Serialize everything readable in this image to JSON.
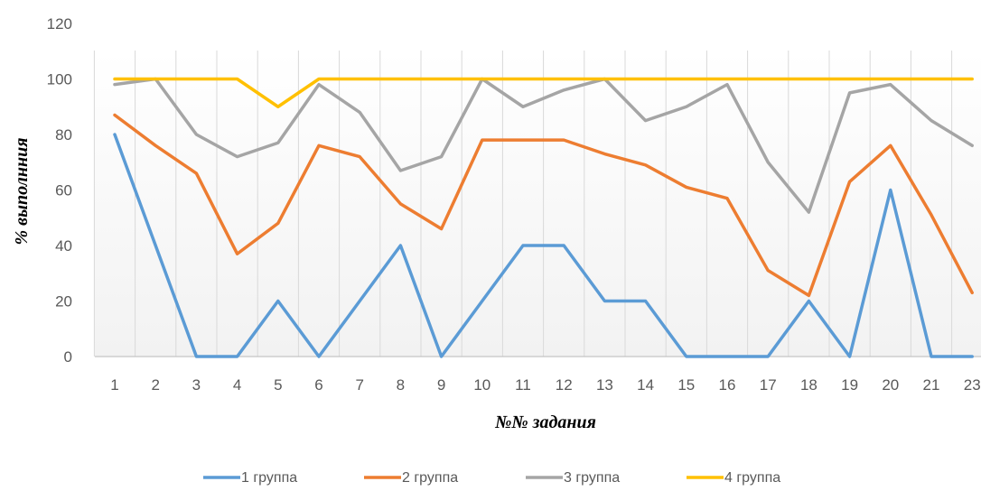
{
  "chart_data": {
    "type": "line",
    "title": "",
    "xlabel": "№№ задания",
    "ylabel": "% выполнния",
    "ylim": [
      0,
      120
    ],
    "yticks": [
      0,
      20,
      40,
      60,
      80,
      100,
      120
    ],
    "grid": "vertical",
    "legend_position": "bottom",
    "categories": [
      "1",
      "2",
      "3",
      "4",
      "5",
      "6",
      "7",
      "8",
      "9",
      "10",
      "11",
      "12",
      "13",
      "14",
      "15",
      "16",
      "17",
      "18",
      "19",
      "20",
      "21",
      "23"
    ],
    "series": [
      {
        "name": "1 группа",
        "color": "#5B9BD5",
        "values": [
          80,
          40,
          0,
          0,
          20,
          0,
          20,
          40,
          0,
          20,
          40,
          40,
          20,
          20,
          0,
          0,
          0,
          20,
          0,
          60,
          0,
          0
        ]
      },
      {
        "name": "2 группа",
        "color": "#ED7D31",
        "values": [
          87,
          76,
          66,
          37,
          48,
          76,
          72,
          55,
          46,
          78,
          78,
          78,
          73,
          69,
          61,
          57,
          31,
          22,
          63,
          76,
          51,
          23
        ]
      },
      {
        "name": "3 группа",
        "color": "#A5A5A5",
        "values": [
          98,
          100,
          80,
          72,
          77,
          98,
          88,
          67,
          72,
          100,
          90,
          96,
          100,
          85,
          90,
          98,
          70,
          52,
          95,
          98,
          85,
          76
        ]
      },
      {
        "name": "4 группа",
        "color": "#FFC000",
        "values": [
          100,
          100,
          100,
          100,
          90,
          100,
          100,
          100,
          100,
          100,
          100,
          100,
          100,
          100,
          100,
          100,
          100,
          100,
          100,
          100,
          100,
          100
        ]
      }
    ]
  }
}
